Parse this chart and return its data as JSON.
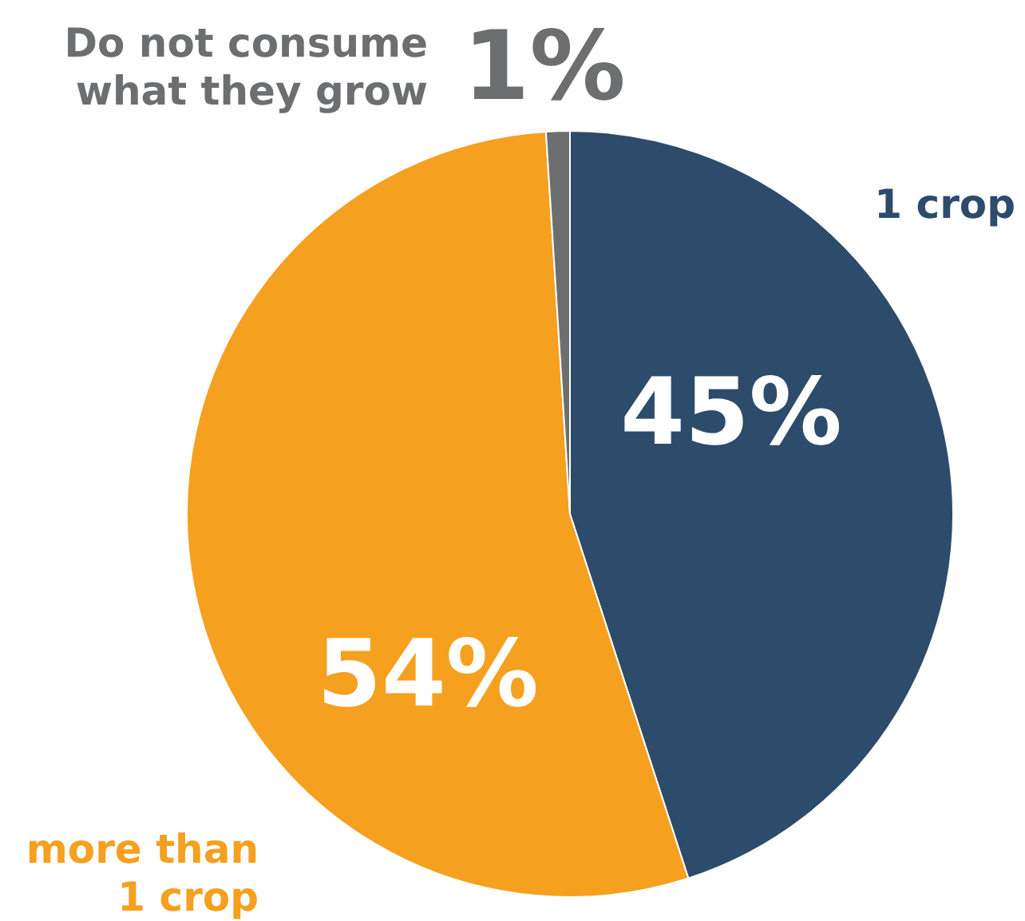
{
  "chart_data": {
    "type": "pie",
    "categories": [
      "1 crop",
      "more than\n1 crop",
      "Do not consume\nwhat they grow"
    ],
    "values": [
      45,
      54,
      1
    ],
    "colors": [
      "#2d4b6a",
      "#f5a01f",
      "#6d6e70"
    ],
    "value_labels": [
      "45%",
      "54%",
      "1%"
    ],
    "legend": false
  }
}
